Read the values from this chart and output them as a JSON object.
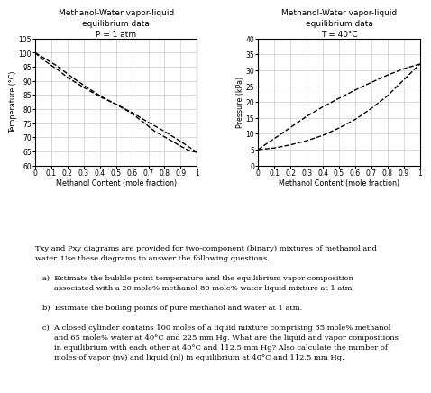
{
  "txy_title": "Methanol-Water vapor-liquid\nequilibrium data\nP = 1 atm",
  "pxy_title": "Methanol-Water vapor-liquid\nequilibrium data\nT = 40°C",
  "txy_xlabel": "Methanol Content (mole fraction)",
  "pxy_xlabel": "Methanol Content (mole fraction)",
  "txy_ylabel": "Temperature (°C)",
  "pxy_ylabel": "Pressure (kPa)",
  "txy_xlim": [
    0,
    1
  ],
  "txy_ylim": [
    60,
    105
  ],
  "pxy_xlim": [
    0,
    1
  ],
  "pxy_ylim": [
    0,
    40
  ],
  "txy_yticks": [
    60,
    65,
    70,
    75,
    80,
    85,
    90,
    95,
    100,
    105
  ],
  "pxy_yticks": [
    0,
    5,
    10,
    15,
    20,
    25,
    30,
    35,
    40
  ],
  "x_ticks": [
    0,
    0.1,
    0.2,
    0.3,
    0.4,
    0.5,
    0.6,
    0.7,
    0.8,
    0.9,
    1
  ],
  "x_tick_labels": [
    "0",
    "0.1",
    "0.2",
    "0.3",
    "0.4",
    "0.5",
    "0.6",
    "0.7",
    "0.8",
    "0.9",
    "1"
  ],
  "txy_liquid_x": [
    0.0,
    0.02,
    0.05,
    0.1,
    0.15,
    0.2,
    0.3,
    0.4,
    0.5,
    0.6,
    0.7,
    0.8,
    0.9,
    1.0
  ],
  "txy_liquid_y": [
    100.0,
    98.9,
    97.5,
    95.5,
    93.5,
    91.2,
    87.7,
    84.4,
    81.7,
    78.74,
    75.3,
    72.1,
    68.5,
    64.7
  ],
  "txy_vapor_x": [
    0.0,
    0.13,
    0.23,
    0.32,
    0.41,
    0.5,
    0.59,
    0.67,
    0.74,
    0.82,
    0.895,
    0.943,
    0.979,
    1.0
  ],
  "txy_vapor_y": [
    100.0,
    95.5,
    91.2,
    87.7,
    84.4,
    81.7,
    78.74,
    75.3,
    72.1,
    69.5,
    67.0,
    65.5,
    64.9,
    64.7
  ],
  "pxy_liquid_x": [
    0.0,
    0.05,
    0.1,
    0.2,
    0.3,
    0.4,
    0.5,
    0.6,
    0.7,
    0.8,
    0.9,
    1.0
  ],
  "pxy_liquid_y": [
    5.0,
    6.8,
    8.5,
    12.0,
    15.5,
    18.5,
    21.2,
    23.8,
    26.2,
    28.5,
    30.5,
    32.0
  ],
  "pxy_vapor_x": [
    0.0,
    0.1,
    0.2,
    0.3,
    0.4,
    0.5,
    0.6,
    0.7,
    0.8,
    0.9,
    0.95,
    1.0
  ],
  "pxy_vapor_y": [
    5.0,
    5.5,
    6.5,
    7.8,
    9.5,
    11.8,
    14.5,
    18.0,
    22.0,
    27.0,
    29.5,
    32.0
  ],
  "line_color": "#000000",
  "line_style": "--",
  "line_width": 1.0,
  "bg_color": "#ffffff",
  "grid_color": "#cccccc",
  "text_color": "#000000",
  "font_size_title": 6.5,
  "font_size_label": 5.8,
  "font_size_tick": 5.5,
  "font_size_text": 6.0
}
